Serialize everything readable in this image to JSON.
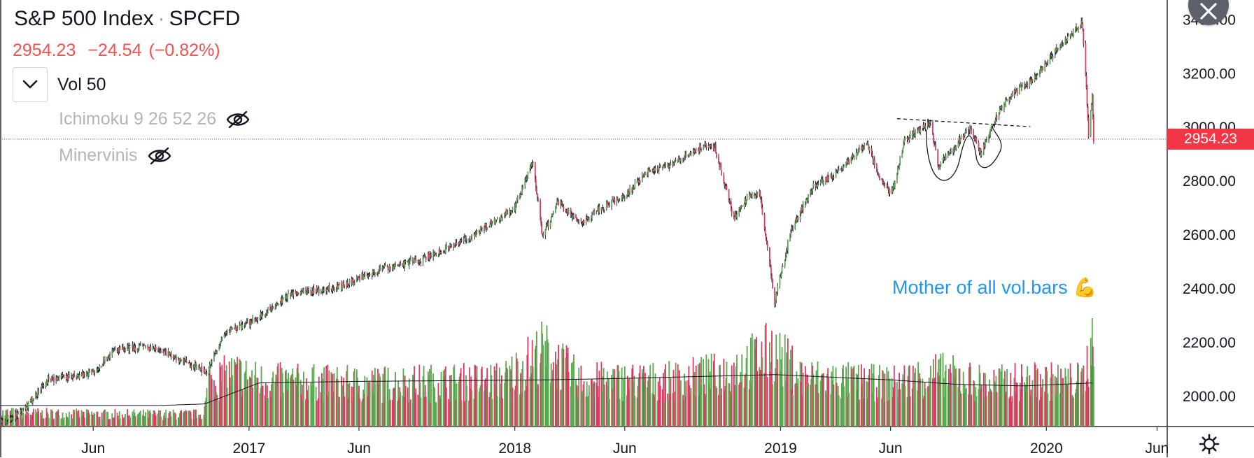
{
  "header": {
    "symbol_name": "S&P 500 Index",
    "separator": "·",
    "ticker": "SPCFD",
    "last_price": "2954.23",
    "change": "−24.54",
    "change_pct": "(−0.82%)"
  },
  "indicators": [
    {
      "name": "Vol 50",
      "visible": true
    },
    {
      "name": "Ichimoku 9 26 52 26",
      "visible": false
    },
    {
      "name": "Minervinis",
      "visible": false
    }
  ],
  "icons": {
    "toggle": "chevron-down-icon",
    "hidden": "eye-off-icon",
    "close": "close-icon",
    "settings": "gear-icon"
  },
  "price_tag": "2954.23",
  "annotation": {
    "text": "Mother of all vol.bars",
    "emoji": "💪"
  },
  "colors": {
    "up": "#5aa84f",
    "down": "#dc3a61",
    "last_price": "#f23645",
    "annotation": "#2196f3",
    "text": "#131722"
  },
  "chart_data": {
    "type": "candlestick",
    "title": "S&P 500 Index · SPCFD",
    "x_tick_labels": [
      "Jun",
      "2017",
      "Jun",
      "2018",
      "Jun",
      "2019",
      "Jun",
      "2020",
      "Jun"
    ],
    "y_tick_labels": [
      "2000.00",
      "2200.00",
      "2400.00",
      "2600.00",
      "2800.00",
      "3000.00",
      "3200.00",
      "3400.00"
    ],
    "y_range": [
      1880,
      3440
    ],
    "x_range": [
      "2016-01-25",
      "2020-06-15"
    ],
    "last_price": 2954.23,
    "close_series": {
      "x": [
        "2016-02-01",
        "2016-03-01",
        "2016-04-01",
        "2016-05-01",
        "2016-06-01",
        "2016-07-01",
        "2016-08-01",
        "2016-09-01",
        "2016-10-01",
        "2016-11-04",
        "2016-12-01",
        "2017-01-01",
        "2017-03-01",
        "2017-05-01",
        "2017-07-01",
        "2017-09-01",
        "2017-11-01",
        "2018-01-01",
        "2018-01-26",
        "2018-02-08",
        "2018-03-01",
        "2018-04-02",
        "2018-05-01",
        "2018-06-01",
        "2018-07-01",
        "2018-08-01",
        "2018-09-20",
        "2018-10-03",
        "2018-10-29",
        "2018-11-15",
        "2018-12-03",
        "2018-12-24",
        "2019-01-15",
        "2019-02-15",
        "2019-03-15",
        "2019-04-30",
        "2019-05-15",
        "2019-06-03",
        "2019-06-20",
        "2019-07-26",
        "2019-08-06",
        "2019-08-20",
        "2019-09-19",
        "2019-10-03",
        "2019-10-28",
        "2019-11-15",
        "2019-12-15",
        "2020-01-15",
        "2020-02-19",
        "2020-02-25",
        "2020-02-28",
        "2020-03-04",
        "2020-03-06"
      ],
      "y": [
        1900,
        1960,
        2060,
        2070,
        2090,
        2170,
        2180,
        2170,
        2130,
        2090,
        2240,
        2270,
        2380,
        2400,
        2470,
        2510,
        2590,
        2700,
        2870,
        2590,
        2720,
        2640,
        2700,
        2740,
        2830,
        2860,
        2930,
        2920,
        2660,
        2730,
        2760,
        2350,
        2610,
        2780,
        2820,
        2940,
        2820,
        2750,
        2950,
        3020,
        2850,
        2900,
        3000,
        2900,
        3060,
        3120,
        3180,
        3290,
        3390,
        3140,
        2960,
        3120,
        2954.23
      ]
    },
    "volume_series": {
      "x": [
        "2016-01-25",
        "2016-06-01",
        "2016-10-31",
        "2016-11-07",
        "2016-12-15",
        "2017-01-15",
        "2017-06-01",
        "2017-12-15",
        "2018-02-09",
        "2018-04-01",
        "2018-08-01",
        "2018-10-15",
        "2018-12-21",
        "2019-02-01",
        "2019-06-01",
        "2019-08-05",
        "2019-10-15",
        "2019-12-01",
        "2020-02-20",
        "2020-02-28",
        "2020-03-06"
      ],
      "y": [
        0.9,
        0.8,
        0.8,
        3,
        3.5,
        3,
        2.8,
        3,
        5,
        3,
        3,
        3.5,
        5,
        3.2,
        2.8,
        3.5,
        2.8,
        3,
        3,
        4.5,
        7
      ]
    },
    "volume_ma": {
      "name": "Vol 50",
      "x": [
        "2016-01-25",
        "2016-09-01",
        "2016-11-01",
        "2017-01-15",
        "2017-06-01",
        "2018-02-15",
        "2018-06-01",
        "2018-12-25",
        "2019-06-01",
        "2019-09-01",
        "2019-12-01",
        "2020-03-06"
      ],
      "y": [
        1.4,
        1.4,
        1.5,
        2.9,
        3.0,
        3.1,
        3.2,
        3.45,
        3.1,
        2.8,
        2.7,
        2.9
      ]
    },
    "drawings": [
      {
        "type": "horizontal-trendline",
        "style": "dashed",
        "from": "2019-06-10",
        "to": "2019-12-10",
        "y": [
          3030,
          3000
        ]
      },
      {
        "type": "cup-curve",
        "from": "2019-07-20",
        "to": "2019-10-25"
      }
    ]
  }
}
